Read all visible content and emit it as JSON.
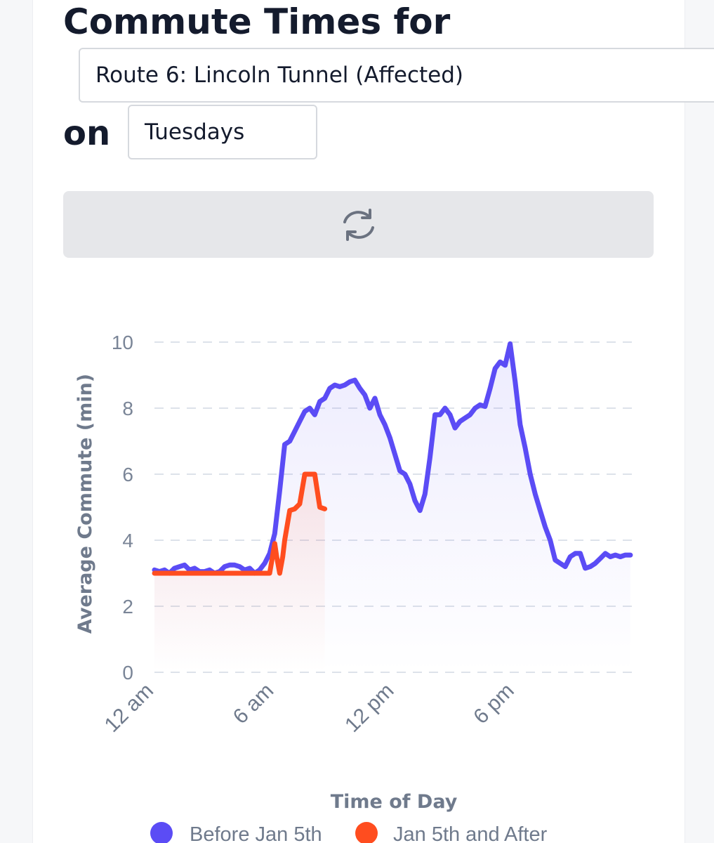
{
  "header": {
    "title": "Commute Times for",
    "route_value": "Route 6: Lincoln Tunnel (Affected)",
    "on_label": "on",
    "day_value": "Tuesdays"
  },
  "refresh": {
    "icon": "refresh-icon"
  },
  "colors": {
    "before": "#5b4cf5",
    "after": "#ff4d1f"
  },
  "chart_data": {
    "type": "line",
    "xlabel": "Time of Day",
    "ylabel": "Average Commute (min)",
    "ylim": [
      0,
      10
    ],
    "xlim": [
      0,
      24
    ],
    "yticks": [
      0,
      2,
      4,
      6,
      8,
      10
    ],
    "xticks": [
      {
        "value": 0,
        "label": "12 am"
      },
      {
        "value": 6,
        "label": "6 am"
      },
      {
        "value": 12,
        "label": "12 pm"
      },
      {
        "value": 18,
        "label": "6 pm"
      }
    ],
    "grid": true,
    "legend_position": "bottom",
    "series": [
      {
        "name": "Before Jan 5th",
        "points": [
          [
            0,
            3.1
          ],
          [
            0.25,
            3.05
          ],
          [
            0.5,
            3.1
          ],
          [
            0.75,
            3.0
          ],
          [
            1,
            3.15
          ],
          [
            1.25,
            3.2
          ],
          [
            1.5,
            3.25
          ],
          [
            1.75,
            3.1
          ],
          [
            2,
            3.15
          ],
          [
            2.25,
            3.05
          ],
          [
            2.5,
            3.05
          ],
          [
            2.75,
            3.1
          ],
          [
            3,
            3.0
          ],
          [
            3.25,
            3.05
          ],
          [
            3.5,
            3.2
          ],
          [
            3.75,
            3.25
          ],
          [
            4,
            3.25
          ],
          [
            4.25,
            3.2
          ],
          [
            4.5,
            3.1
          ],
          [
            4.75,
            3.15
          ],
          [
            5,
            3.0
          ],
          [
            5.25,
            3.1
          ],
          [
            5.5,
            3.3
          ],
          [
            5.75,
            3.6
          ],
          [
            6,
            4.2
          ],
          [
            6.25,
            5.5
          ],
          [
            6.5,
            6.9
          ],
          [
            6.75,
            7.0
          ],
          [
            7,
            7.3
          ],
          [
            7.25,
            7.6
          ],
          [
            7.5,
            7.9
          ],
          [
            7.75,
            8.0
          ],
          [
            8,
            7.8
          ],
          [
            8.25,
            8.2
          ],
          [
            8.5,
            8.3
          ],
          [
            8.75,
            8.6
          ],
          [
            9,
            8.7
          ],
          [
            9.25,
            8.65
          ],
          [
            9.5,
            8.7
          ],
          [
            9.75,
            8.8
          ],
          [
            10,
            8.85
          ],
          [
            10.25,
            8.6
          ],
          [
            10.5,
            8.4
          ],
          [
            10.75,
            8.0
          ],
          [
            11,
            8.3
          ],
          [
            11.25,
            7.8
          ],
          [
            11.5,
            7.5
          ],
          [
            11.75,
            7.1
          ],
          [
            12,
            6.6
          ],
          [
            12.25,
            6.1
          ],
          [
            12.5,
            6.0
          ],
          [
            12.75,
            5.7
          ],
          [
            13,
            5.2
          ],
          [
            13.25,
            4.9
          ],
          [
            13.5,
            5.4
          ],
          [
            13.75,
            6.5
          ],
          [
            14,
            7.8
          ],
          [
            14.25,
            7.8
          ],
          [
            14.5,
            8.0
          ],
          [
            14.75,
            7.8
          ],
          [
            15,
            7.4
          ],
          [
            15.25,
            7.6
          ],
          [
            15.5,
            7.7
          ],
          [
            15.75,
            7.8
          ],
          [
            16,
            8.0
          ],
          [
            16.25,
            8.1
          ],
          [
            16.5,
            8.05
          ],
          [
            16.75,
            8.6
          ],
          [
            17,
            9.2
          ],
          [
            17.25,
            9.4
          ],
          [
            17.5,
            9.3
          ],
          [
            17.75,
            9.95
          ],
          [
            18,
            8.8
          ],
          [
            18.25,
            7.5
          ],
          [
            18.5,
            6.8
          ],
          [
            18.75,
            6.0
          ],
          [
            19,
            5.4
          ],
          [
            19.25,
            4.9
          ],
          [
            19.5,
            4.4
          ],
          [
            19.75,
            4.0
          ],
          [
            20,
            3.4
          ],
          [
            20.25,
            3.3
          ],
          [
            20.5,
            3.2
          ],
          [
            20.75,
            3.5
          ],
          [
            21,
            3.6
          ],
          [
            21.25,
            3.6
          ],
          [
            21.5,
            3.15
          ],
          [
            21.75,
            3.2
          ],
          [
            22,
            3.3
          ],
          [
            22.25,
            3.45
          ],
          [
            22.5,
            3.6
          ],
          [
            22.75,
            3.5
          ],
          [
            23,
            3.55
          ],
          [
            23.25,
            3.5
          ],
          [
            23.5,
            3.55
          ],
          [
            23.75,
            3.55
          ]
        ]
      },
      {
        "name": "Jan 5th and After",
        "points": [
          [
            0,
            3.0
          ],
          [
            1,
            3.0
          ],
          [
            2,
            3.0
          ],
          [
            3,
            3.0
          ],
          [
            4,
            3.0
          ],
          [
            5,
            3.0
          ],
          [
            5.5,
            3.0
          ],
          [
            5.75,
            3.0
          ],
          [
            6,
            3.9
          ],
          [
            6.1,
            3.5
          ],
          [
            6.25,
            3.0
          ],
          [
            6.4,
            3.5
          ],
          [
            6.5,
            4.0
          ],
          [
            6.75,
            4.9
          ],
          [
            7,
            4.95
          ],
          [
            7.25,
            5.1
          ],
          [
            7.5,
            6.0
          ],
          [
            7.75,
            6.0
          ],
          [
            8,
            6.0
          ],
          [
            8.25,
            5.0
          ],
          [
            8.5,
            4.95
          ]
        ]
      }
    ]
  }
}
